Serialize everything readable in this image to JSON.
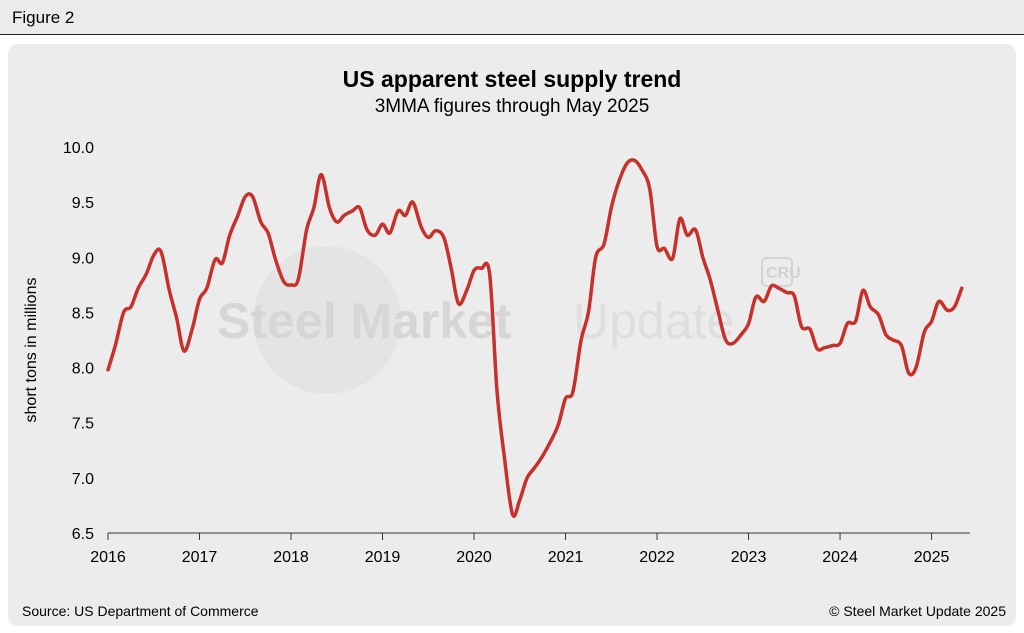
{
  "figure_label": "Figure 2",
  "source": "Source: US Department of Commerce",
  "copyright": "© Steel Market Update 2025",
  "watermark": {
    "text_bold": "Steel Market",
    "text_light": "Update",
    "logo": "CRU"
  },
  "colors": {
    "line": "#c8302a",
    "panel": "#ececec",
    "header": "#ebebeb",
    "watermark": "#d6d6d6"
  },
  "chart_data": {
    "type": "line",
    "title": "US apparent steel supply trend",
    "subtitle": "3MMA figures through May 2025",
    "xlabel": "",
    "ylabel": "short tons in millions",
    "xlim": [
      2016.0,
      2025.42
    ],
    "ylim": [
      6.5,
      10.0
    ],
    "x_ticks": [
      2016,
      2017,
      2018,
      2019,
      2020,
      2021,
      2022,
      2023,
      2024,
      2025
    ],
    "x_tick_labels": [
      "2016",
      "2017",
      "2018",
      "2019",
      "2020",
      "2021",
      "2022",
      "2023",
      "2024",
      "2025"
    ],
    "y_ticks": [
      6.5,
      7.0,
      7.5,
      8.0,
      8.5,
      9.0,
      9.5,
      10.0
    ],
    "y_tick_labels": [
      "6.5",
      "7.0",
      "7.5",
      "8.0",
      "8.5",
      "9.0",
      "9.5",
      "10.0"
    ],
    "grid": false,
    "series": [
      {
        "name": "",
        "x": [
          2016.0,
          2016.08,
          2016.17,
          2016.25,
          2016.33,
          2016.42,
          2016.5,
          2016.58,
          2016.67,
          2016.75,
          2016.83,
          2016.92,
          2017.0,
          2017.08,
          2017.17,
          2017.25,
          2017.33,
          2017.42,
          2017.5,
          2017.58,
          2017.67,
          2017.75,
          2017.83,
          2017.92,
          2018.0,
          2018.08,
          2018.17,
          2018.25,
          2018.33,
          2018.42,
          2018.5,
          2018.58,
          2018.67,
          2018.75,
          2018.83,
          2018.92,
          2019.0,
          2019.08,
          2019.17,
          2019.25,
          2019.33,
          2019.42,
          2019.5,
          2019.58,
          2019.67,
          2019.75,
          2019.83,
          2019.92,
          2020.0,
          2020.08,
          2020.17,
          2020.25,
          2020.33,
          2020.42,
          2020.5,
          2020.58,
          2020.67,
          2020.75,
          2020.83,
          2020.92,
          2021.0,
          2021.08,
          2021.17,
          2021.25,
          2021.33,
          2021.42,
          2021.5,
          2021.58,
          2021.67,
          2021.75,
          2021.83,
          2021.92,
          2022.0,
          2022.08,
          2022.17,
          2022.25,
          2022.33,
          2022.42,
          2022.5,
          2022.58,
          2022.67,
          2022.75,
          2022.83,
          2022.92,
          2023.0,
          2023.08,
          2023.17,
          2023.25,
          2023.33,
          2023.42,
          2023.5,
          2023.58,
          2023.67,
          2023.75,
          2023.83,
          2023.92,
          2024.0,
          2024.08,
          2024.17,
          2024.25,
          2024.33,
          2024.42,
          2024.5,
          2024.58,
          2024.67,
          2024.75,
          2024.83,
          2024.92,
          2025.0,
          2025.08,
          2025.17,
          2025.25,
          2025.33
        ],
        "y": [
          7.98,
          8.2,
          8.5,
          8.55,
          8.72,
          8.85,
          9.02,
          9.05,
          8.7,
          8.45,
          8.15,
          8.35,
          8.62,
          8.72,
          8.98,
          8.95,
          9.2,
          9.38,
          9.55,
          9.55,
          9.32,
          9.22,
          8.98,
          8.78,
          8.75,
          8.8,
          9.25,
          9.45,
          9.75,
          9.45,
          9.32,
          9.38,
          9.42,
          9.45,
          9.25,
          9.2,
          9.3,
          9.22,
          9.42,
          9.38,
          9.5,
          9.28,
          9.18,
          9.24,
          9.18,
          8.9,
          8.58,
          8.7,
          8.88,
          8.9,
          8.85,
          7.8,
          7.2,
          6.67,
          6.8,
          7.0,
          7.1,
          7.2,
          7.32,
          7.48,
          7.72,
          7.78,
          8.25,
          8.5,
          9.0,
          9.12,
          9.45,
          9.68,
          9.85,
          9.88,
          9.8,
          9.62,
          9.1,
          9.08,
          8.99,
          9.35,
          9.2,
          9.25,
          9.0,
          8.8,
          8.5,
          8.25,
          8.22,
          8.3,
          8.4,
          8.64,
          8.6,
          8.74,
          8.72,
          8.68,
          8.65,
          8.37,
          8.35,
          8.17,
          8.18,
          8.2,
          8.22,
          8.4,
          8.42,
          8.7,
          8.55,
          8.48,
          8.3,
          8.25,
          8.2,
          7.95,
          8.0,
          8.32,
          8.42,
          8.6,
          8.52,
          8.55,
          8.72
        ]
      }
    ]
  }
}
